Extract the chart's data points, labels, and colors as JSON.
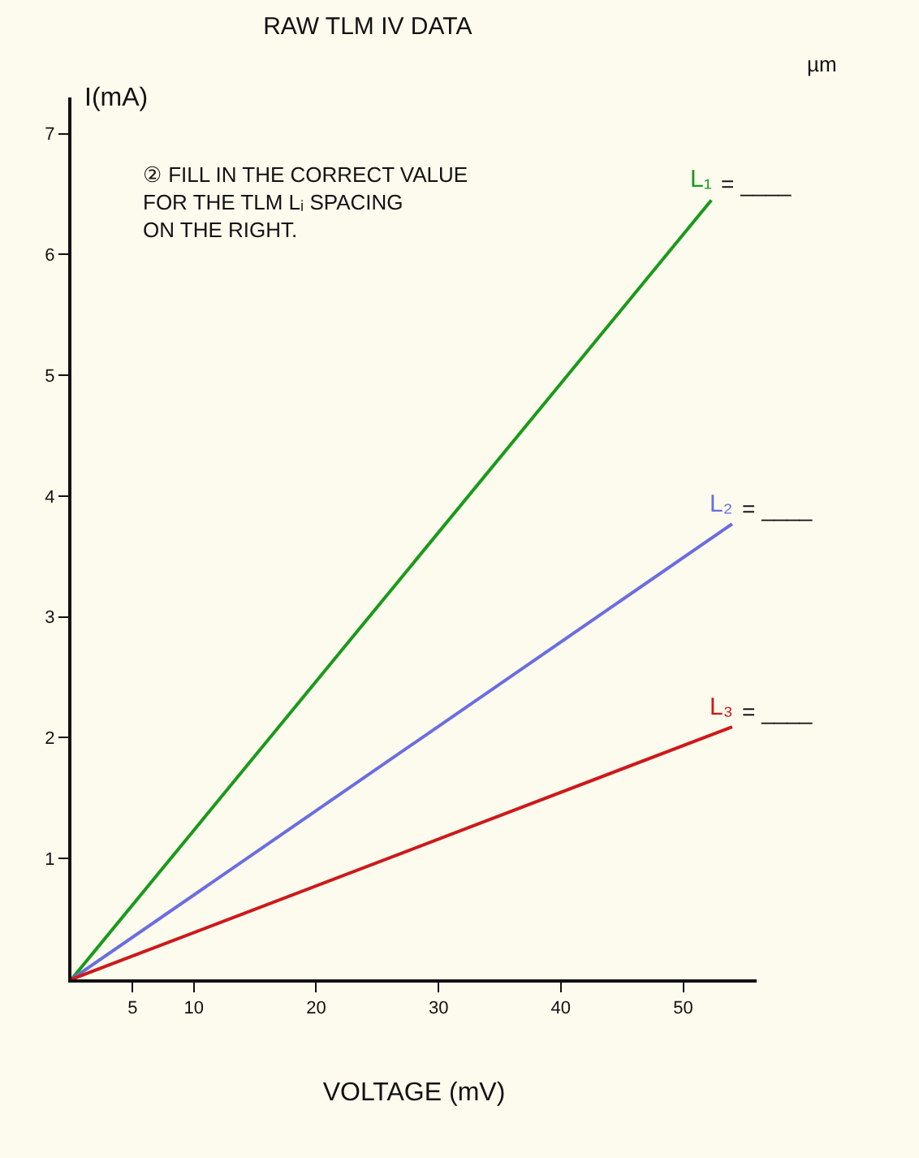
{
  "chart_data": {
    "type": "line",
    "title": "RAW TLM IV DATA",
    "xlabel": "VOLTAGE (mV)",
    "ylabel": "I(mA)",
    "xlim": [
      0,
      56
    ],
    "ylim": [
      0,
      7.3
    ],
    "xticks": [
      5,
      10,
      20,
      30,
      40,
      50
    ],
    "yticks": [
      1,
      2,
      3,
      4,
      5,
      6,
      7
    ],
    "grid": false,
    "legend": false,
    "marker": "none",
    "line_style": "solid",
    "series": [
      {
        "name": "L₁",
        "color": "#1a9a1a",
        "x": [
          0,
          52.3
        ],
        "values": [
          0,
          6.45
        ]
      },
      {
        "name": "L₂",
        "color": "#6a6ee0",
        "x": [
          0,
          54
        ],
        "values": [
          0,
          3.77
        ]
      },
      {
        "name": "L₃",
        "color": "#cc1a1a",
        "x": [
          0,
          54
        ],
        "values": [
          0,
          2.09
        ]
      }
    ],
    "annotations": [
      "② FILL IN THE CORRECT VALUE\nFOR THE TLM Lᵢ SPACING\nON THE RIGHT.",
      "µm",
      "= ____",
      "= ____",
      "= ____"
    ]
  }
}
